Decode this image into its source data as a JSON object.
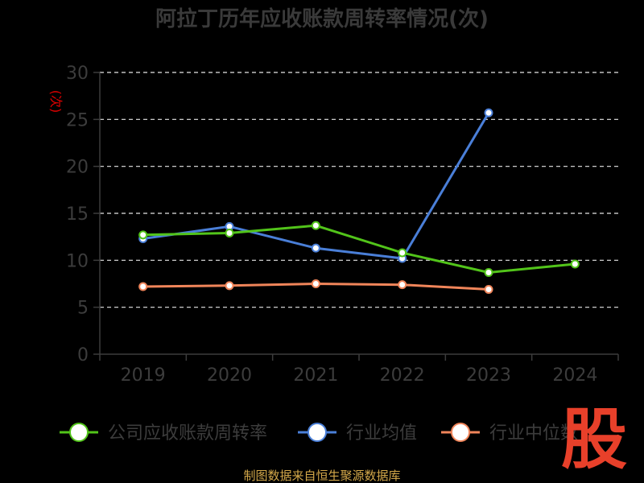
{
  "chart_data": {
    "type": "line",
    "title": "阿拉丁历年应收账款周转率情况(次)",
    "ylabel": "(次)",
    "categories": [
      "2019",
      "2020",
      "2021",
      "2022",
      "2023",
      "2024"
    ],
    "y_ticks": [
      "0",
      "5",
      "10",
      "15",
      "20",
      "25",
      "30"
    ],
    "ylim": [
      0,
      30
    ],
    "grid": true,
    "legend_position": "bottom",
    "series": [
      {
        "name": "公司应收账款周转率",
        "color": "#52c41a",
        "values": [
          12.7,
          12.9,
          13.7,
          10.8,
          8.7,
          9.6
        ]
      },
      {
        "name": "行业均值",
        "color": "#4a7fd8",
        "values": [
          12.3,
          13.6,
          11.3,
          10.2,
          25.7,
          null
        ]
      },
      {
        "name": "行业中位数",
        "color": "#f0855a",
        "values": [
          7.2,
          7.3,
          7.5,
          7.4,
          6.9,
          null
        ]
      }
    ]
  },
  "footer": {
    "source": "制图数据来自恒生聚源数据库"
  },
  "watermark": {
    "text": "股"
  }
}
